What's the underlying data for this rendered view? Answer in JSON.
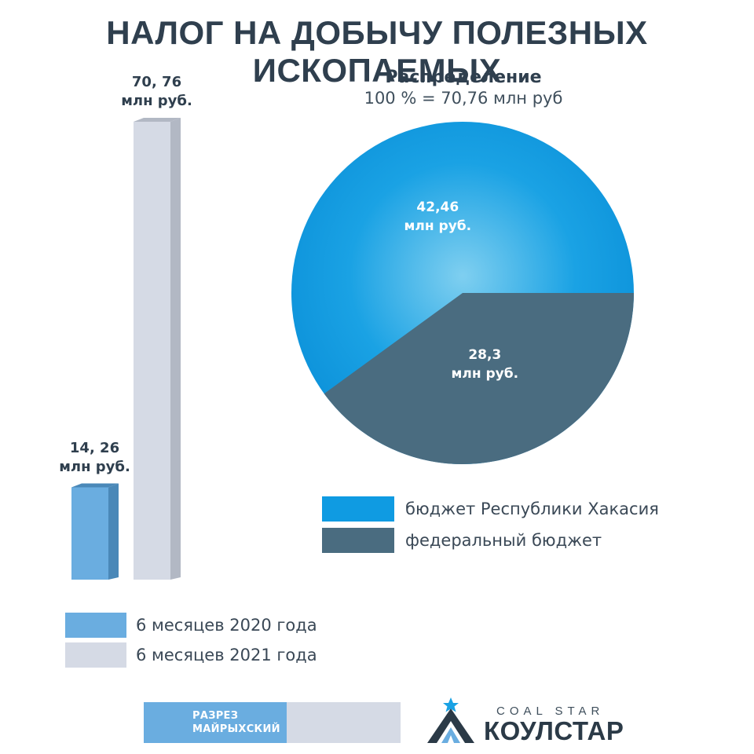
{
  "title": "НАЛОГ НА ДОБЫЧУ ПОЛЕЗНЫХ ИСКОПАЕМЫХ",
  "chart_data": [
    {
      "type": "bar",
      "categories": [
        "6 месяцев 2020 года",
        "6 месяцев 2021 года"
      ],
      "values": [
        14.26,
        70.76
      ],
      "data_labels": [
        "14, 26\nмлн руб.",
        "70, 76\nмлн руб."
      ],
      "colors": [
        "#6aade0",
        "#d5dae5"
      ],
      "side_colors": [
        "#4a88b8",
        "#b2b8c4"
      ],
      "ylim": [
        0,
        70.76
      ],
      "grid": false,
      "legend": "bottom-left"
    },
    {
      "type": "pie",
      "title": "Распределение",
      "subtitle": "100 % = 70,76 млн руб",
      "labels": [
        "бюджет Республики Хакасия",
        "федеральный бюджет"
      ],
      "values": [
        42.46,
        28.3
      ],
      "data_labels": [
        "42,46\nмлн руб.",
        "28,3\nмлн руб."
      ],
      "colors": [
        "#0f9be2",
        "#4a6c80"
      ],
      "legend": "bottom"
    }
  ],
  "footer": {
    "section_label": "РАЗРЕЗ\nМАЙРЫХСКИЙ",
    "logo_sub": "COAL STAR",
    "logo_main": "КОУЛСТАР",
    "logo_icon": "star-mountain-logo"
  }
}
